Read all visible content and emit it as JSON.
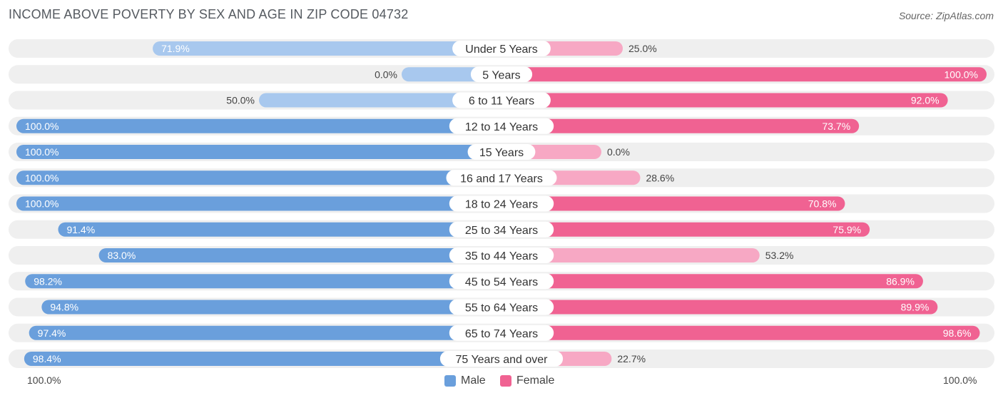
{
  "header": {
    "title": "INCOME ABOVE POVERTY BY SEX AND AGE IN ZIP CODE 04732",
    "source": "Source: ZipAtlas.com"
  },
  "colors": {
    "male_strong": "#6a9fdc",
    "male_light": "#a8c8ee",
    "female_strong": "#f06292",
    "female_light": "#f7a8c4",
    "track": "#efefef"
  },
  "legend": {
    "male_label": "Male",
    "female_label": "Female",
    "left_axis": "100.0%",
    "right_axis": "100.0%"
  },
  "chart_data": {
    "type": "bar",
    "orientation": "horizontal-diverging",
    "title": "INCOME ABOVE POVERTY BY SEX AND AGE IN ZIP CODE 04732",
    "xlim": [
      0,
      100
    ],
    "categories": [
      "Under 5 Years",
      "5 Years",
      "6 to 11 Years",
      "12 to 14 Years",
      "15 Years",
      "16 and 17 Years",
      "18 to 24 Years",
      "25 to 34 Years",
      "35 to 44 Years",
      "45 to 54 Years",
      "55 to 64 Years",
      "65 to 74 Years",
      "75 Years and over"
    ],
    "series": [
      {
        "name": "Male",
        "values": [
          71.9,
          0.0,
          50.0,
          100.0,
          100.0,
          100.0,
          100.0,
          91.4,
          83.0,
          98.2,
          94.8,
          97.4,
          98.4
        ],
        "labels": [
          "71.9%",
          "0.0%",
          "50.0%",
          "100.0%",
          "100.0%",
          "100.0%",
          "100.0%",
          "91.4%",
          "83.0%",
          "98.2%",
          "94.8%",
          "97.4%",
          "98.4%"
        ]
      },
      {
        "name": "Female",
        "values": [
          25.0,
          100.0,
          92.0,
          73.7,
          0.0,
          28.6,
          70.8,
          75.9,
          53.2,
          86.9,
          89.9,
          98.6,
          22.7
        ],
        "labels": [
          "25.0%",
          "100.0%",
          "92.0%",
          "73.7%",
          "0.0%",
          "28.6%",
          "70.8%",
          "75.9%",
          "53.2%",
          "86.9%",
          "89.9%",
          "98.6%",
          "22.7%"
        ]
      }
    ]
  }
}
